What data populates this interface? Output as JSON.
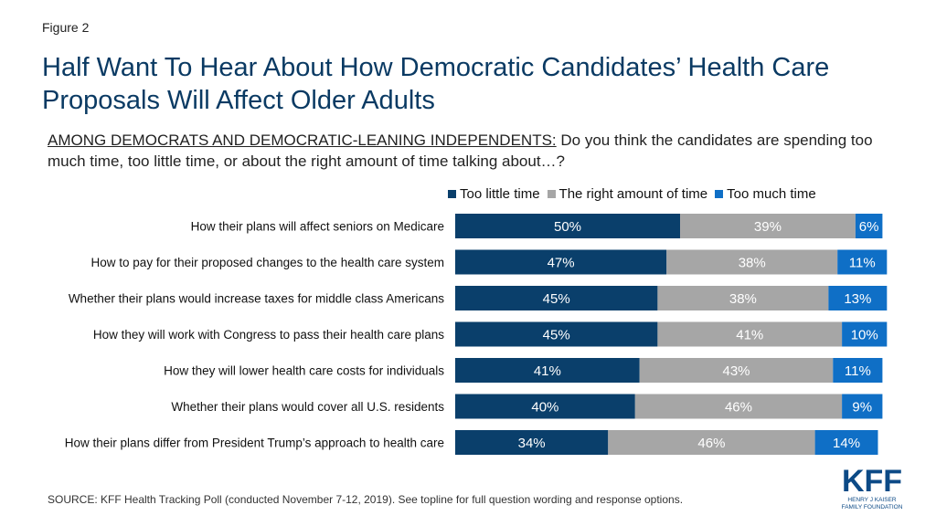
{
  "figure_label": "Figure 2",
  "title": "Half Want To Hear About How Democratic Candidates’ Health Care Proposals Will Affect Older Adults",
  "subtitle_prefix": "AMONG DEMOCRATS AND DEMOCRATIC-LEANING INDEPENDENTS:",
  "subtitle_question": " Do you think the candidates are spending too much time, too little time, or about the right amount of time talking about…?",
  "source": "SOURCE: KFF Health Tracking Poll (conducted November 7-12, 2019). See topline for full question wording and response options.",
  "logo": {
    "main_text": "KFF",
    "line1": "HENRY J KAISER",
    "line2": "FAMILY FOUNDATION",
    "color": "#0c4a86"
  },
  "colors": {
    "too_little": "#0a3f6b",
    "right_amount": "#a6a6a6",
    "too_much": "#0f6fc6"
  },
  "chart_data": {
    "type": "bar",
    "orientation": "horizontal",
    "stacked": true,
    "xlim": [
      0,
      100
    ],
    "legend_position": "top-right",
    "categories": [
      "How their plans will affect seniors on Medicare",
      "How to pay for their proposed changes to the health care system",
      "Whether their plans would increase taxes for middle class Americans",
      "How they will work with Congress to pass their health care plans",
      "How they will lower health care costs for individuals",
      "Whether their plans would cover all U.S. residents",
      "How their plans differ from President Trump’s approach to health care"
    ],
    "series": [
      {
        "name": "Too little time",
        "color": "#0a3f6b",
        "values": [
          50,
          47,
          45,
          45,
          41,
          40,
          34
        ],
        "labels": [
          "50%",
          "47%",
          "45%",
          "45%",
          "41%",
          "40%",
          "34%"
        ]
      },
      {
        "name": "The right amount of time",
        "color": "#a6a6a6",
        "values": [
          39,
          38,
          38,
          41,
          43,
          46,
          46
        ],
        "labels": [
          "39%",
          "38%",
          "38%",
          "41%",
          "43%",
          "46%",
          "46%"
        ]
      },
      {
        "name": "Too much time",
        "color": "#0f6fc6",
        "values": [
          6,
          11,
          13,
          10,
          11,
          9,
          14
        ],
        "labels": [
          "6%",
          "11%",
          "13%",
          "10%",
          "11%",
          "9%",
          "14%"
        ]
      }
    ]
  }
}
